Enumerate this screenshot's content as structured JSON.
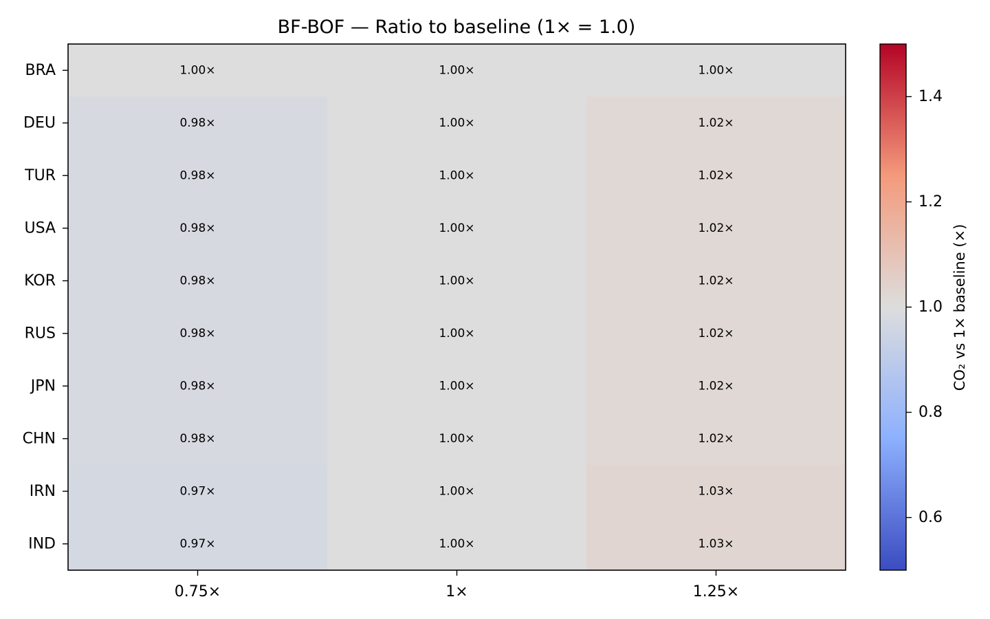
{
  "chart_data": {
    "type": "heatmap",
    "title": "BF-BOF — Ratio to baseline (1× = 1.0)",
    "xlabel": "",
    "ylabel": "",
    "x_categories": [
      "0.75×",
      "1×",
      "1.25×"
    ],
    "y_categories": [
      "BRA",
      "DEU",
      "TUR",
      "USA",
      "KOR",
      "RUS",
      "JPN",
      "CHN",
      "IRN",
      "IND"
    ],
    "values": [
      [
        1.0,
        1.0,
        1.0
      ],
      [
        0.98,
        1.0,
        1.02
      ],
      [
        0.98,
        1.0,
        1.02
      ],
      [
        0.98,
        1.0,
        1.02
      ],
      [
        0.98,
        1.0,
        1.02
      ],
      [
        0.98,
        1.0,
        1.02
      ],
      [
        0.98,
        1.0,
        1.02
      ],
      [
        0.98,
        1.0,
        1.02
      ],
      [
        0.97,
        1.0,
        1.03
      ],
      [
        0.97,
        1.0,
        1.03
      ]
    ],
    "cell_labels": [
      [
        "1.00×",
        "1.00×",
        "1.00×"
      ],
      [
        "0.98×",
        "1.00×",
        "1.02×"
      ],
      [
        "0.98×",
        "1.00×",
        "1.02×"
      ],
      [
        "0.98×",
        "1.00×",
        "1.02×"
      ],
      [
        "0.98×",
        "1.00×",
        "1.02×"
      ],
      [
        "0.98×",
        "1.00×",
        "1.02×"
      ],
      [
        "0.98×",
        "1.00×",
        "1.02×"
      ],
      [
        "0.98×",
        "1.00×",
        "1.02×"
      ],
      [
        "0.97×",
        "1.00×",
        "1.03×"
      ],
      [
        "0.97×",
        "1.00×",
        "1.03×"
      ]
    ],
    "colormap": "coolwarm",
    "vmin": 0.5,
    "vmax": 1.5,
    "colorbar": {
      "label": "CO₂ vs 1× baseline (×)",
      "ticks": [
        0.6,
        0.8,
        1.0,
        1.2,
        1.4
      ],
      "tick_labels": [
        "0.6",
        "0.8",
        "1.0",
        "1.2",
        "1.4"
      ]
    }
  }
}
